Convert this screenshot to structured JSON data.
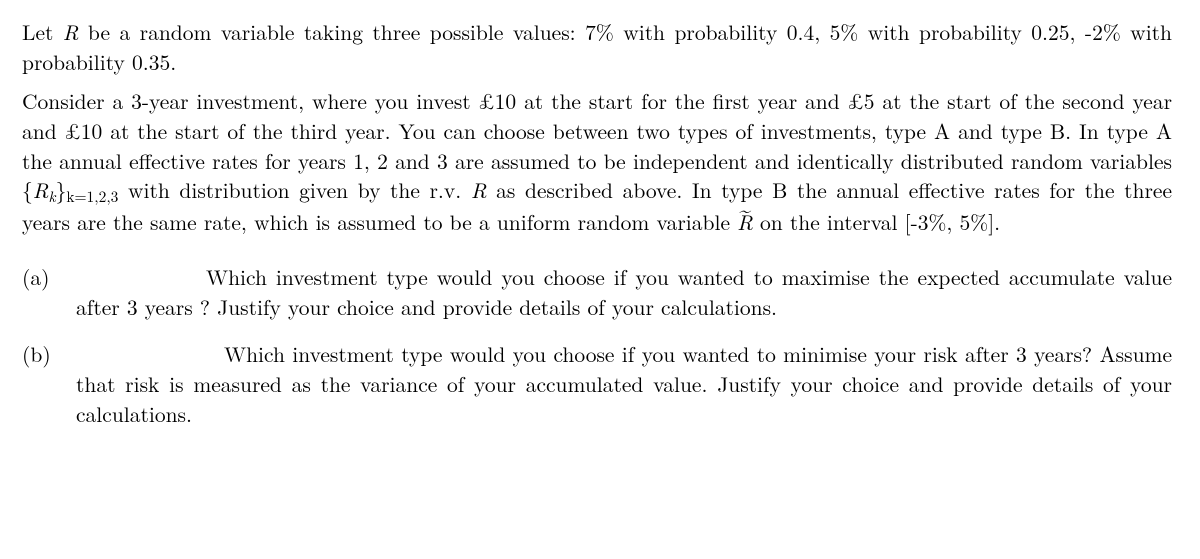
{
  "typography": {
    "font_family": "Computer Modern / Latin Modern (serif)",
    "body_fontsize_pt": 16,
    "line_height": 1.38,
    "text_color": "#000000",
    "background_color": "#ffffff",
    "justify": true
  },
  "para1_a": "Let ",
  "para1_b": " be a random variable taking three possible values: 7% with probability 0.4, 5% with probability 0.25, -2% with probability 0.35.",
  "R": "R",
  "para2_a": "Consider a 3-year investment, where you invest £10 at the start for the first year and £5 at the start of the second year and £10 at the start of the third year. You can choose between two types of investments, type A and type B. In type A the annual effective rates for years 1, 2 and 3 are assumed to be independent and identically distributed random variables ",
  "set_open": "{",
  "Rk": "R",
  "Rk_sub": "k",
  "set_close": "}",
  "k_eq": "k=1,2,3",
  "para2_b": " with distribution given by the r.v. ",
  "para2_c": " as described above. In type B the annual effective rates for the three years are the same rate, which is assumed to be a uniform random variable ",
  "Rtilde": "R",
  "para2_d": " on the interval [-3%, 5%].",
  "qa_tag": "(a)",
  "qa_text": "Which investment type would you choose if you wanted to maximise the expected accumulate value after 3 years ? Justify your choice and provide details of your calculations.",
  "qb_tag": "(b)",
  "qb_text": "Which investment type would you choose if you wanted to minimise your risk after 3 years? Assume that risk is measured as the variance of your accumulated value. Justify your choice and provide details of your calculations.",
  "problem_data": {
    "R_distribution": {
      "values_pct": [
        7,
        5,
        -2
      ],
      "probabilities": [
        0.4,
        0.25,
        0.35
      ]
    },
    "investment_cashflows_gbp": {
      "year1_start": 10,
      "year2_start": 5,
      "year3_start": 10
    },
    "typeA": {
      "rates": "iid R_k, k=1,2,3, each ~ R"
    },
    "typeB": {
      "rate": "single R~ ~ Uniform[-0.03, 0.05] applied all 3 years",
      "uniform_interval_pct": [
        -3,
        5
      ]
    }
  }
}
